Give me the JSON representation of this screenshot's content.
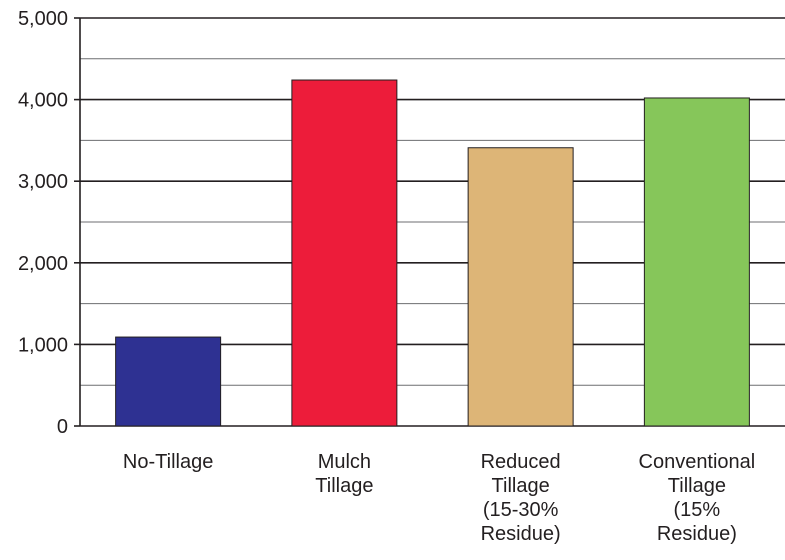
{
  "chart_data": {
    "type": "bar",
    "categories": [
      "No-Tillage",
      "Mulch\nTillage",
      "Reduced\nTillage\n(15-30%\nResidue)",
      "Conventional\nTillage\n(15%\nResidue)"
    ],
    "values": [
      1090,
      4240,
      3410,
      4020
    ],
    "colors": [
      "#2e3192",
      "#ed1c3a",
      "#ddb577",
      "#86c65a"
    ],
    "ylim": [
      0,
      5000
    ],
    "yticks": [
      0,
      1000,
      2000,
      3000,
      4000,
      5000
    ],
    "ytick_labels": [
      "0",
      "1,000",
      "2,000",
      "3,000",
      "4,000",
      "5,000"
    ],
    "minor_gridlines": true,
    "title": "",
    "xlabel": "",
    "ylabel": ""
  }
}
